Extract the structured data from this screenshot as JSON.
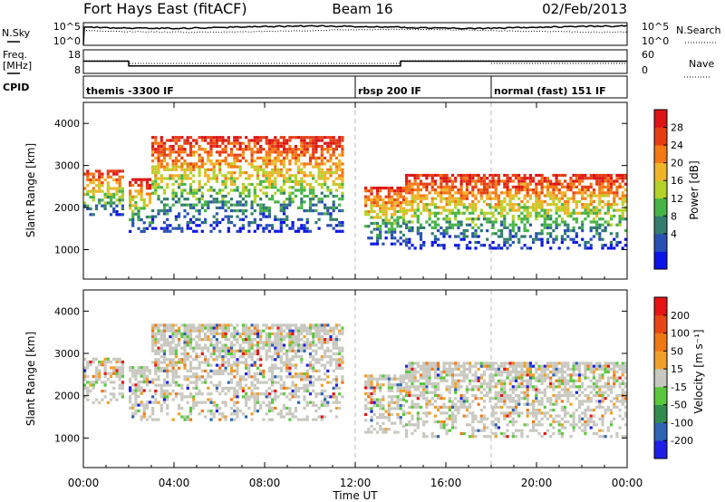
{
  "header": {
    "station": "Fort Hays East (fitACF)",
    "beam": "Beam 16",
    "date": "02/Feb/2013"
  },
  "top_panels": {
    "nsky_label": "N.Sky",
    "nsearch_label": "N.Search",
    "noise_ticks": [
      "10^5",
      "10^0"
    ],
    "freq_label_1": "Freq.",
    "freq_label_2": "[MHz]",
    "freq_ticks": [
      "18",
      "8"
    ],
    "nave_label": "Nave",
    "nave_ticks": [
      "60",
      "0"
    ],
    "cpid_label": "CPID",
    "cpid_segments": [
      {
        "label": "themis -3300 IF",
        "start_hour": 0
      },
      {
        "label": "rbsp 200 IF",
        "start_hour": 12
      },
      {
        "label": "normal (fast) 151 IF",
        "start_hour": 18
      }
    ],
    "freq_series": [
      {
        "hour": 0,
        "mhz": 13.2
      },
      {
        "hour": 2,
        "mhz": 13.2
      },
      {
        "hour": 2,
        "mhz": 11.2
      },
      {
        "hour": 14,
        "mhz": 11.2
      },
      {
        "hour": 14,
        "mhz": 13.2
      },
      {
        "hour": 24,
        "mhz": 13.2
      }
    ]
  },
  "chart_data": [
    {
      "type": "heatmap",
      "title": "Power",
      "xlabel": "",
      "ylabel": "Slant Range [km]",
      "xlim": [
        0,
        24
      ],
      "ylim": [
        300,
        4500
      ],
      "x_ticks": [
        "00:00",
        "04:00",
        "08:00",
        "12:00",
        "16:00",
        "20:00",
        "00:00"
      ],
      "y_ticks": [
        "1000",
        "2000",
        "3000",
        "4000"
      ],
      "colorbar_label": "Power [dB]",
      "colorbar_ticks": [
        "28",
        "24",
        "20",
        "16",
        "12",
        "8",
        "4"
      ],
      "colorbar_colors": [
        "#0a14e6",
        "#2850b4",
        "#327d6e",
        "#46b446",
        "#b4d228",
        "#f0b428",
        "#f57814",
        "#e63c14",
        "#dc1414"
      ],
      "echo_regions": [
        {
          "t0": 0.0,
          "t1": 1.8,
          "r_low": 1800,
          "r_high": 2900
        },
        {
          "t0": 2.0,
          "t1": 3.0,
          "r_low": 1400,
          "r_high": 2700
        },
        {
          "t0": 3.0,
          "t1": 11.5,
          "r_low": 1400,
          "r_high": 3700
        },
        {
          "t0": 12.4,
          "t1": 14.2,
          "r_low": 1100,
          "r_high": 2500
        },
        {
          "t0": 14.2,
          "t1": 24.0,
          "r_low": 1000,
          "r_high": 2800
        }
      ]
    },
    {
      "type": "heatmap",
      "title": "Velocity",
      "xlabel": "Time UT",
      "ylabel": "Slant Range [km]",
      "xlim": [
        0,
        24
      ],
      "ylim": [
        300,
        4500
      ],
      "x_ticks": [
        "00:00",
        "04:00",
        "08:00",
        "12:00",
        "16:00",
        "20:00",
        "00:00"
      ],
      "y_ticks": [
        "1000",
        "2000",
        "3000",
        "4000"
      ],
      "colorbar_label": "Velocity [m s⁻¹]",
      "colorbar_ticks": [
        "200",
        "100",
        "50",
        "15",
        "-15",
        "-50",
        "-100",
        "-200"
      ],
      "colorbar_colors": [
        "#1e1ee6",
        "#2d64b4",
        "#328c50",
        "#5ac83c",
        "#c8c8c0",
        "#f0a028",
        "#f07814",
        "#e64614",
        "#e61414"
      ],
      "echo_regions": [
        {
          "t0": 0.0,
          "t1": 1.8,
          "r_low": 1800,
          "r_high": 2900
        },
        {
          "t0": 2.0,
          "t1": 3.0,
          "r_low": 1400,
          "r_high": 2700
        },
        {
          "t0": 3.0,
          "t1": 11.5,
          "r_low": 1400,
          "r_high": 3700
        },
        {
          "t0": 12.4,
          "t1": 14.2,
          "r_low": 1100,
          "r_high": 2500
        },
        {
          "t0": 14.2,
          "t1": 24.0,
          "r_low": 1000,
          "r_high": 2800
        }
      ]
    }
  ]
}
